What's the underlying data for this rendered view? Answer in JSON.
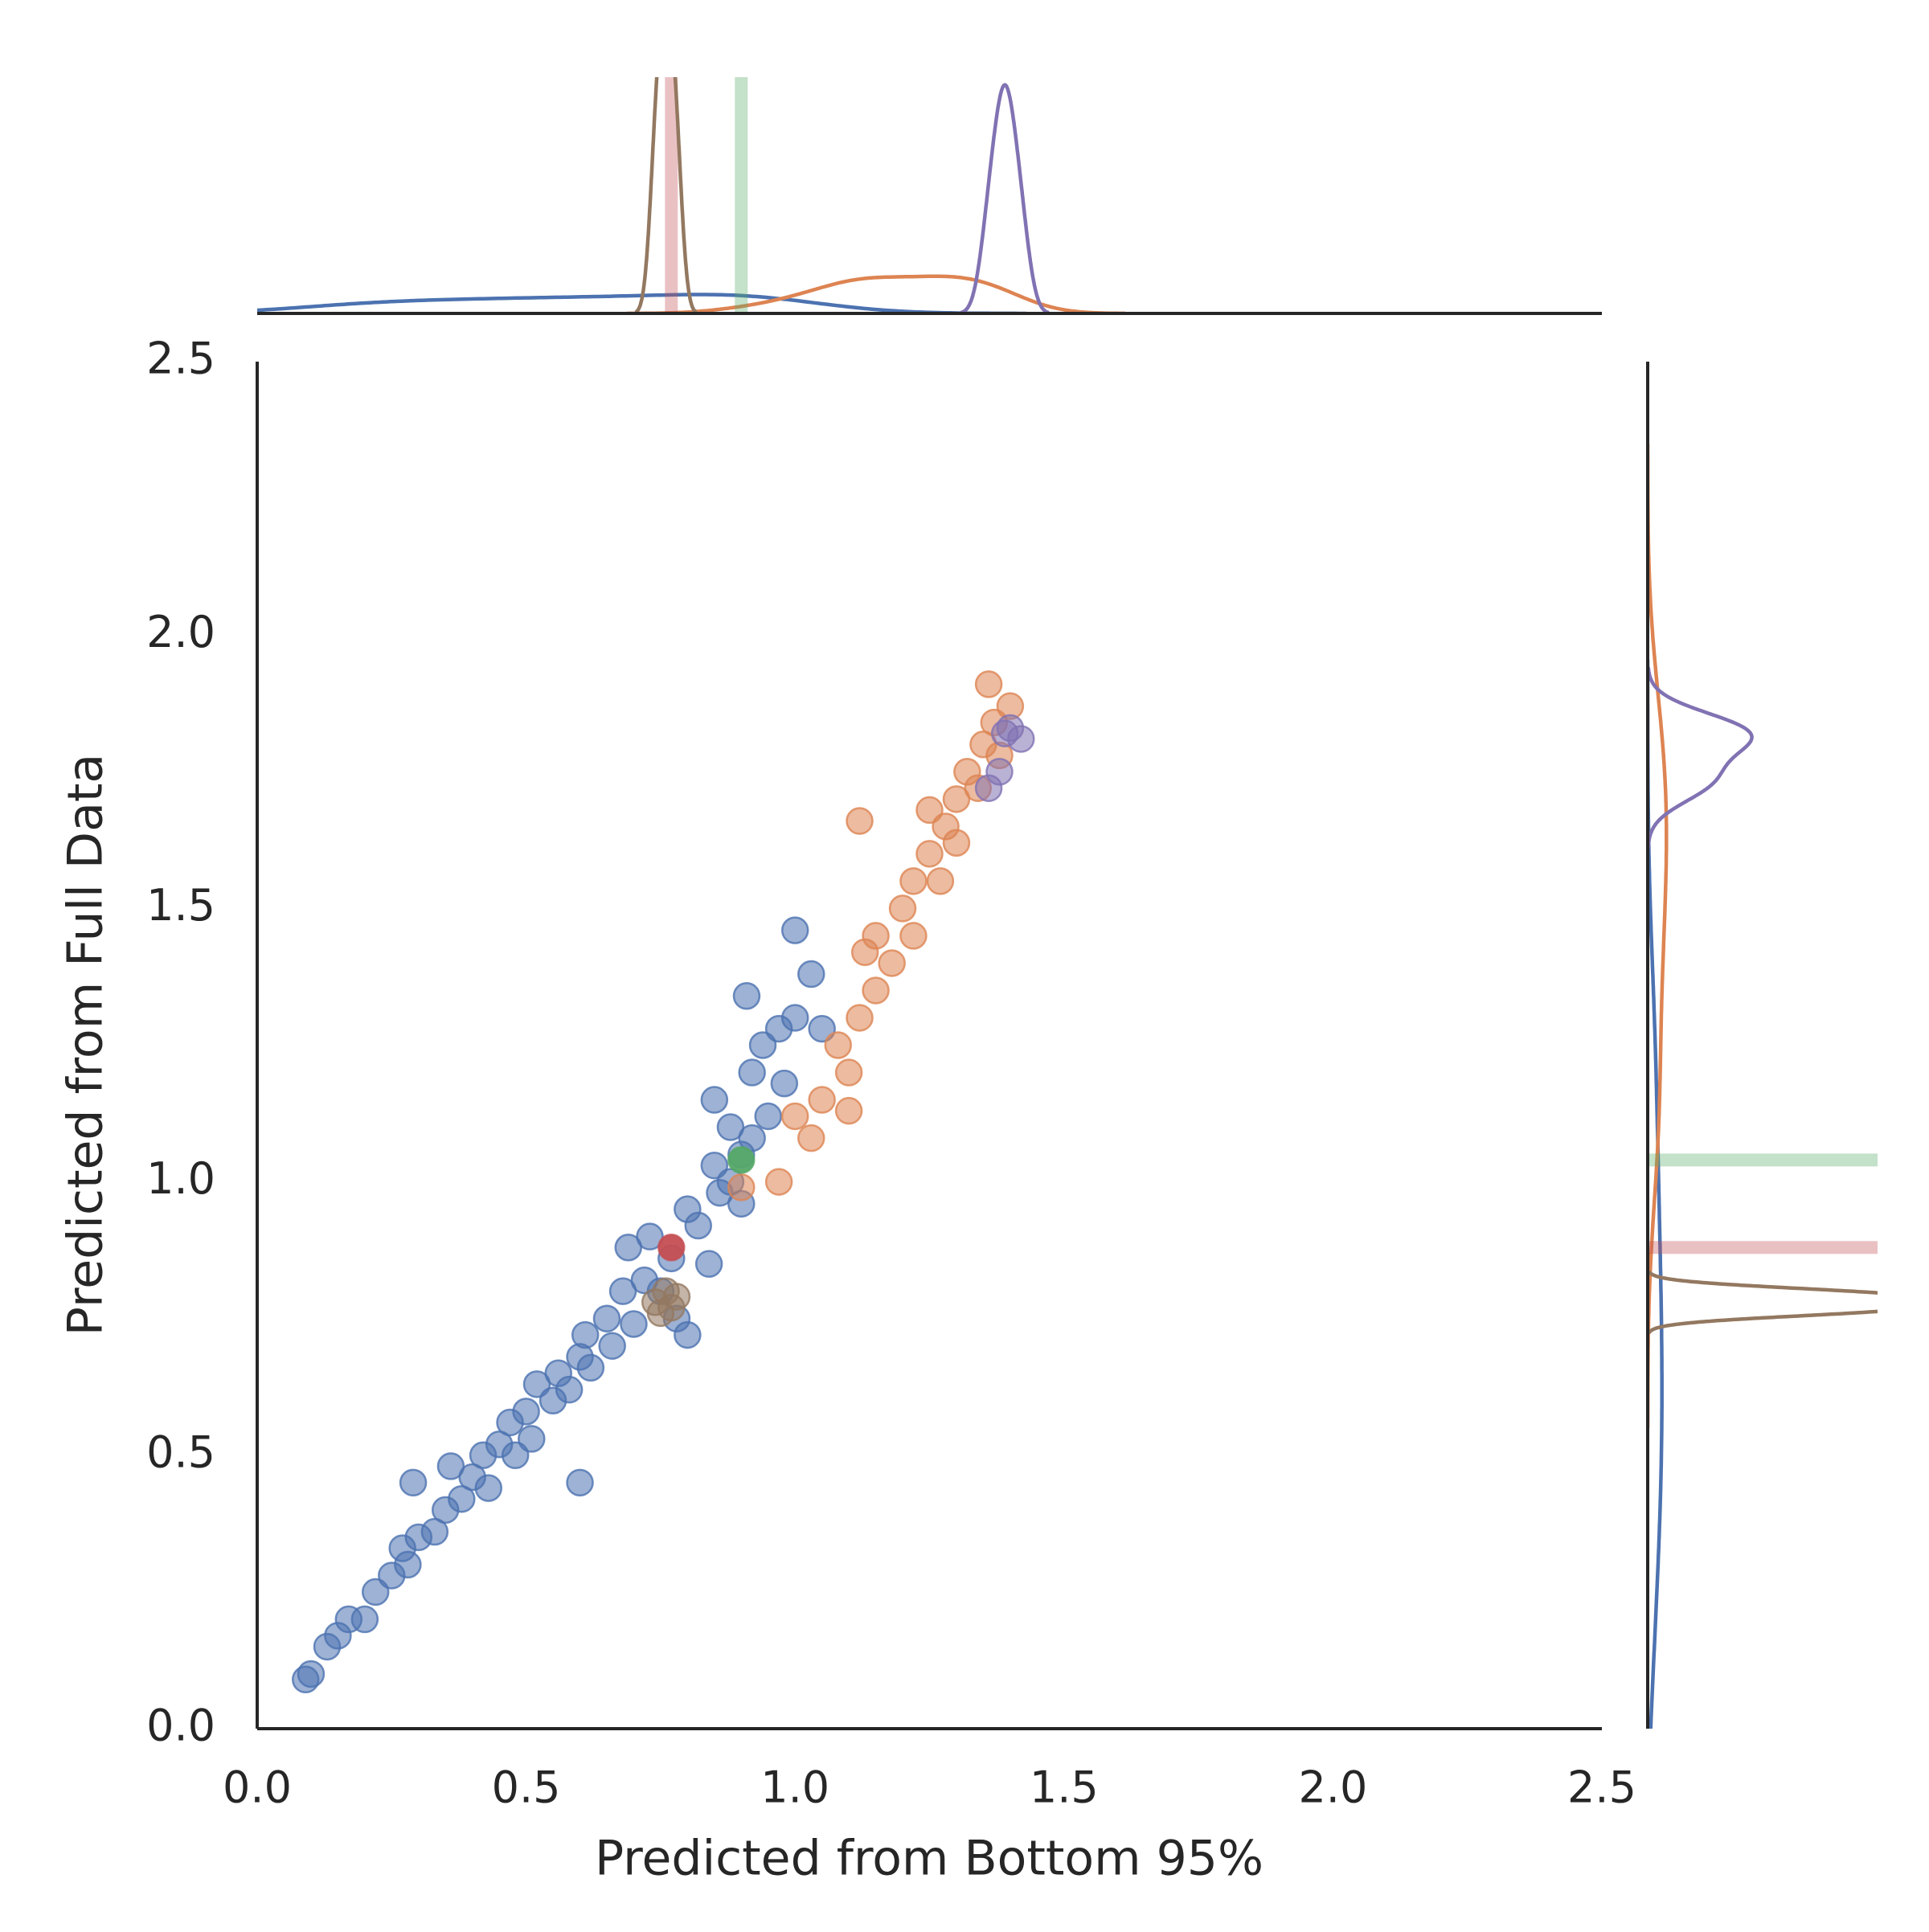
{
  "chart_data": {
    "type": "scatter",
    "xlabel": "Predicted from Bottom 95%",
    "ylabel": "Predicted from Full Data",
    "xlim": [
      0,
      2.5
    ],
    "ylim": [
      0,
      2.5
    ],
    "xticks": [
      {
        "value": 0,
        "label": "0.0"
      },
      0.5,
      {
        "value": 1,
        "label": "1.0"
      },
      1.5,
      {
        "value": 2,
        "label": "2.0"
      },
      2.5
    ],
    "yticks": [
      {
        "value": 0,
        "label": "0.0"
      },
      0.5,
      {
        "value": 1,
        "label": "1.0"
      },
      1.5,
      {
        "value": 2,
        "label": "2.0"
      },
      2.5
    ],
    "grid": false,
    "series": [
      {
        "color": "#4c72b0",
        "x": [
          0.09,
          0.1,
          0.13,
          0.15,
          0.17,
          0.2,
          0.22,
          0.25,
          0.27,
          0.28,
          0.3,
          0.29,
          0.33,
          0.35,
          0.36,
          0.38,
          0.4,
          0.42,
          0.43,
          0.45,
          0.47,
          0.48,
          0.5,
          0.51,
          0.52,
          0.55,
          0.56,
          0.58,
          0.6,
          0.6,
          0.61,
          0.62,
          0.65,
          0.66,
          0.68,
          0.69,
          0.7,
          0.72,
          0.73,
          0.75,
          0.77,
          0.78,
          0.8,
          0.8,
          0.82,
          0.84,
          0.85,
          0.86,
          0.88,
          0.88,
          0.9,
          0.9,
          0.92,
          0.92,
          0.94,
          0.95,
          0.97,
          0.98,
          1.0,
          1.0,
          1.03,
          1.05,
          0.91,
          0.85
        ],
        "values": [
          0.09,
          0.1,
          0.15,
          0.17,
          0.2,
          0.2,
          0.25,
          0.28,
          0.33,
          0.3,
          0.35,
          0.45,
          0.36,
          0.4,
          0.48,
          0.42,
          0.46,
          0.5,
          0.44,
          0.52,
          0.56,
          0.5,
          0.58,
          0.53,
          0.63,
          0.6,
          0.65,
          0.62,
          0.68,
          0.45,
          0.72,
          0.66,
          0.75,
          0.7,
          0.8,
          0.88,
          0.74,
          0.82,
          0.9,
          0.8,
          0.86,
          0.75,
          0.95,
          0.72,
          0.92,
          0.85,
          1.03,
          0.98,
          1.0,
          1.1,
          1.05,
          0.96,
          1.08,
          1.2,
          1.25,
          1.12,
          1.28,
          1.18,
          1.3,
          1.46,
          1.38,
          1.28,
          1.34,
          1.15
        ]
      },
      {
        "color": "#dd8452",
        "x": [
          0.9,
          0.97,
          1.0,
          1.03,
          1.05,
          1.08,
          1.1,
          1.1,
          1.12,
          1.13,
          1.15,
          1.15,
          1.18,
          1.2,
          1.22,
          1.22,
          1.25,
          1.27,
          1.28,
          1.3,
          1.3,
          1.32,
          1.34,
          1.35,
          1.37,
          1.36,
          1.4,
          1.38,
          1.12,
          1.25
        ],
        "values": [
          0.99,
          1.0,
          1.12,
          1.08,
          1.15,
          1.25,
          1.2,
          1.13,
          1.3,
          1.42,
          1.35,
          1.45,
          1.4,
          1.5,
          1.45,
          1.55,
          1.6,
          1.55,
          1.65,
          1.7,
          1.62,
          1.75,
          1.72,
          1.8,
          1.84,
          1.91,
          1.87,
          1.78,
          1.66,
          1.68
        ]
      },
      {
        "color": "#55a868",
        "x": [
          0.9
        ],
        "values": [
          1.04
        ]
      },
      {
        "color": "#c44e52",
        "x": [
          0.77
        ],
        "values": [
          0.88
        ]
      },
      {
        "color": "#8172b3",
        "x": [
          1.39,
          1.42,
          1.38,
          1.36,
          1.4
        ],
        "values": [
          1.82,
          1.81,
          1.75,
          1.72,
          1.83
        ]
      },
      {
        "color": "#937860",
        "x": [
          0.74,
          0.76,
          0.78,
          0.75,
          0.77
        ],
        "values": [
          0.78,
          0.8,
          0.79,
          0.76,
          0.77
        ]
      }
    ]
  }
}
